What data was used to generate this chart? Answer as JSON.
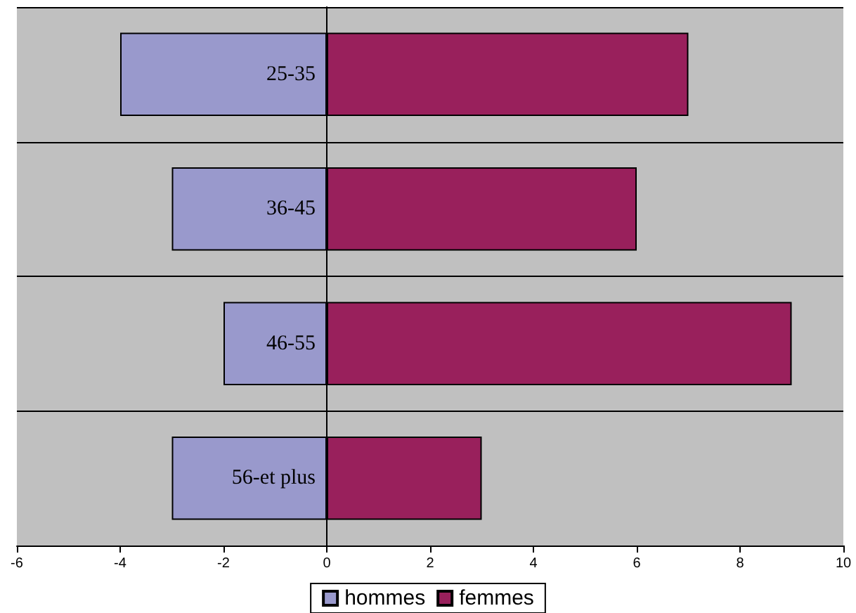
{
  "chart_data": {
    "type": "bar",
    "orientation": "horizontal",
    "categories": [
      "25-35",
      "36-45",
      "46-55",
      "56-et plus"
    ],
    "series": [
      {
        "name": "hommes",
        "color": "#9999cc",
        "values": [
          -4,
          -3,
          -2,
          -3
        ]
      },
      {
        "name": "femmes",
        "color": "#99205c",
        "values": [
          7,
          6,
          9,
          3
        ]
      }
    ],
    "xlim": [
      -6,
      10
    ],
    "xticks": [
      -6,
      -4,
      -2,
      0,
      2,
      4,
      6,
      8,
      10
    ],
    "stacked": true,
    "grid": "y",
    "legend": "bottom"
  }
}
